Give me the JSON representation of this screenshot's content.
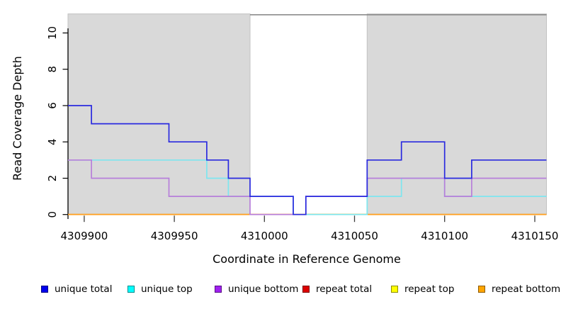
{
  "chart_data": {
    "type": "line",
    "subtype": "step-coverage-plot",
    "xlabel": "Coordinate in Reference Genome",
    "ylabel": "Read Coverage Depth",
    "xlim": [
      4309891,
      4310156.5
    ],
    "ylim": [
      0,
      11.15
    ],
    "x_ticks": [
      4309900,
      4309950,
      4310000,
      4310050,
      4310100,
      4310150
    ],
    "y_ticks": [
      0,
      2,
      4,
      6,
      8,
      10
    ],
    "grid": false,
    "legend_position": "bottom",
    "background_regions": [
      {
        "name": "shaded-region-left",
        "from": 4309891,
        "to": 4309992,
        "top_value": 11.05,
        "fill": "#d9d9d9",
        "border": "#c2c2c2"
      },
      {
        "name": "shaded-region-right",
        "from": 4310057,
        "to": 4310156.5,
        "top_value": 11.05,
        "fill": "#d9d9d9",
        "border": "#c2c2c2"
      }
    ],
    "top_annotation_bar": {
      "from": 4309992,
      "to": 4310156.5,
      "value": 11.0,
      "color": "#8c8c8c"
    },
    "series": [
      {
        "name": "unique total",
        "line_color": "#2a2adf",
        "legend_color": "#0000ee",
        "steps": [
          [
            4309891,
            6
          ],
          [
            4309904,
            5
          ],
          [
            4309947,
            4
          ],
          [
            4309968,
            3
          ],
          [
            4309980,
            2
          ],
          [
            4309992,
            1
          ],
          [
            4310016,
            0
          ],
          [
            4310023,
            1
          ],
          [
            4310057,
            3
          ],
          [
            4310076,
            4
          ],
          [
            4310100,
            2
          ],
          [
            4310115,
            3
          ]
        ]
      },
      {
        "name": "unique top",
        "line_color": "#7ee6ef",
        "legend_color": "#00ffff",
        "steps": [
          [
            4309891,
            3
          ],
          [
            4309968,
            2
          ],
          [
            4309980,
            1
          ],
          [
            4310016,
            0
          ],
          [
            4310057,
            1
          ],
          [
            4310076,
            2
          ],
          [
            4310100,
            1
          ]
        ]
      },
      {
        "name": "unique bottom",
        "line_color": "#b77fda",
        "legend_color": "#a020f0",
        "steps": [
          [
            4309891,
            3
          ],
          [
            4309904,
            2
          ],
          [
            4309947,
            1
          ],
          [
            4309992,
            0
          ],
          [
            4310023,
            1
          ],
          [
            4310057,
            2
          ],
          [
            4310100,
            1
          ],
          [
            4310115,
            2
          ]
        ]
      },
      {
        "name": "repeat total",
        "line_color": "#dd0000",
        "legend_color": "#dd0000",
        "steps": [
          [
            4309891,
            0
          ]
        ]
      },
      {
        "name": "repeat top",
        "line_color": "#ffff00",
        "legend_color": "#ffff00",
        "steps": [
          [
            4309891,
            0
          ]
        ]
      },
      {
        "name": "repeat bottom",
        "line_color": "#ff9f1f",
        "legend_color": "#ffa500",
        "steps": [
          [
            4309891,
            0
          ]
        ]
      }
    ],
    "zero_line_overlays": [
      {
        "from": 4309992,
        "to": 4310016,
        "color": "#ef8ac4"
      },
      {
        "from": 4310023,
        "to": 4310057,
        "color": "#8ad8a8"
      }
    ]
  }
}
